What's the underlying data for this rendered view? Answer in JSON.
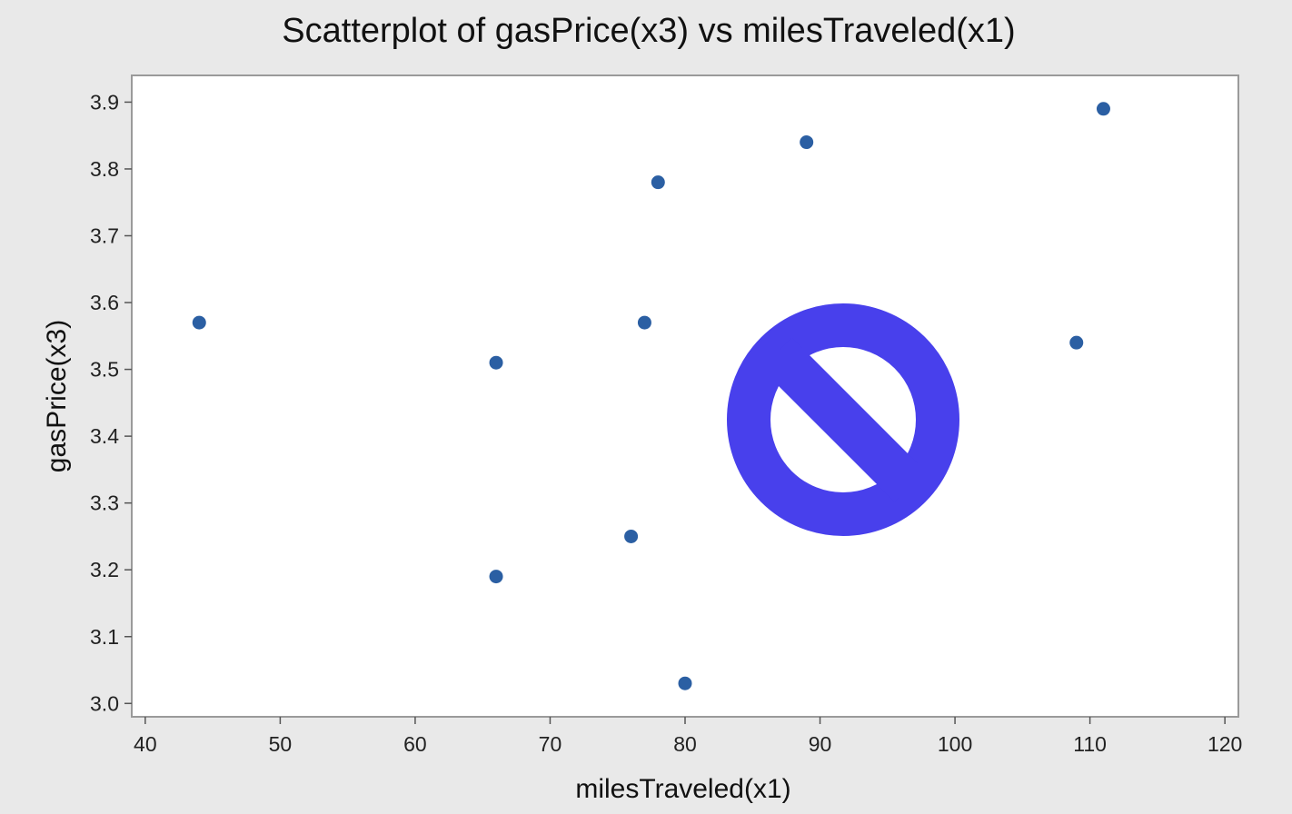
{
  "chart_data": {
    "type": "scatter",
    "title": "Scatterplot of gasPrice(x3) vs milesTraveled(x1)",
    "xlabel": "milesTraveled(x1)",
    "ylabel": "gasPrice(x3)",
    "xlim": [
      39,
      121
    ],
    "ylim": [
      2.98,
      3.94
    ],
    "xticks": [
      40,
      50,
      60,
      70,
      80,
      90,
      100,
      110,
      120
    ],
    "yticks": [
      "3.0",
      "3.1",
      "3.2",
      "3.3",
      "3.4",
      "3.5",
      "3.6",
      "3.7",
      "3.8",
      "3.9"
    ],
    "grid": false,
    "point_color": "#2b5fa3",
    "series": [
      {
        "x": [
          44,
          66,
          66,
          76,
          77,
          78,
          80,
          89,
          109,
          111
        ],
        "y": [
          3.57,
          3.51,
          3.19,
          3.25,
          3.57,
          3.78,
          3.03,
          3.84,
          3.54,
          3.89
        ]
      }
    ]
  },
  "overlay": {
    "icon": "prohibited-icon",
    "color": "#4840ec"
  }
}
